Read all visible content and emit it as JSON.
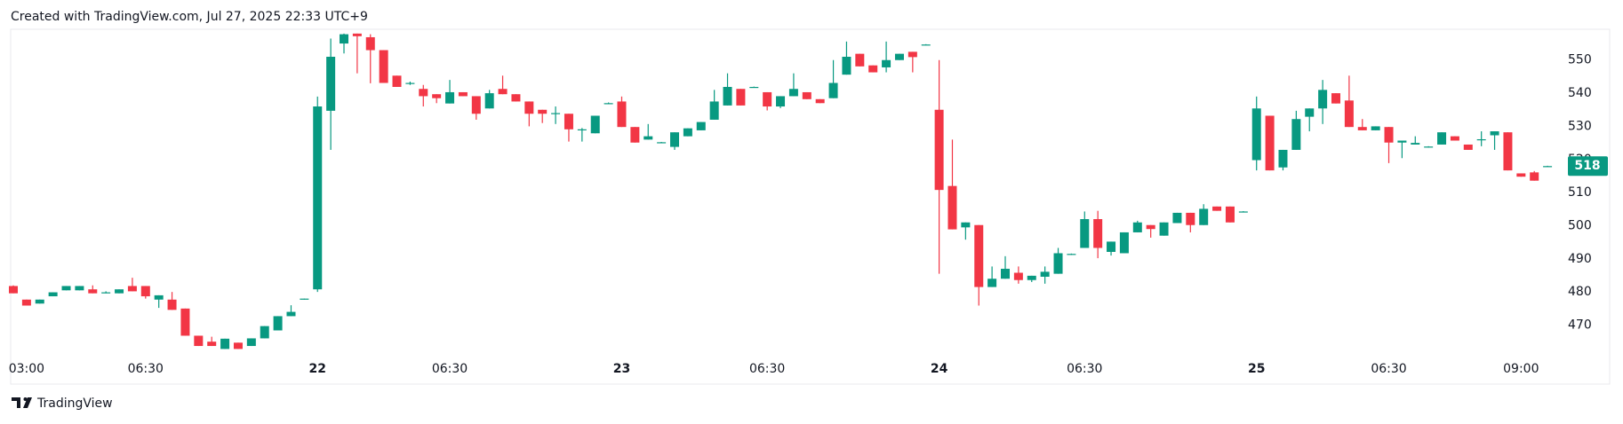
{
  "header": "Created with TradingView.com, Jul 27, 2025 22:33 UTC+9",
  "footer": "TradingView",
  "chart_data": {
    "type": "candlestick",
    "up_color": "#089981",
    "down_color": "#f23645",
    "last_price": 518,
    "ylim": [
      452.2,
      559.3
    ],
    "yticks": [
      470,
      480,
      490,
      500,
      510,
      520,
      530,
      540,
      550
    ],
    "categories": [
      null,
      "03:00",
      null,
      null,
      null,
      null,
      null,
      null,
      null,
      null,
      "06:30",
      null,
      null,
      null,
      null,
      null,
      null,
      null,
      null,
      null,
      null,
      null,
      null,
      "22",
      null,
      null,
      null,
      null,
      null,
      null,
      null,
      null,
      null,
      "06:30",
      null,
      null,
      null,
      null,
      null,
      null,
      null,
      null,
      null,
      null,
      null,
      null,
      "23",
      null,
      null,
      null,
      null,
      null,
      null,
      null,
      null,
      null,
      null,
      "06:30",
      null,
      null,
      null,
      null,
      null,
      null,
      null,
      null,
      null,
      null,
      null,
      null,
      "24",
      null,
      null,
      null,
      null,
      null,
      null,
      null,
      null,
      null,
      null,
      "06:30",
      null,
      null,
      null,
      null,
      null,
      null,
      null,
      null,
      null,
      null,
      null,
      null,
      "25",
      null,
      null,
      null,
      null,
      null,
      null,
      null,
      null,
      null,
      "06:30",
      null,
      null,
      null,
      null,
      null,
      null,
      null,
      null,
      null,
      "09:00",
      null,
      null
    ],
    "open": [
      481.8,
      477.7,
      476.5,
      478.7,
      480.5,
      480.5,
      480.8,
      479.9,
      479.6,
      481.8,
      481.8,
      477.7,
      477.7,
      475,
      466.8,
      465,
      462.8,
      464.7,
      463.7,
      466,
      468.4,
      472.7,
      477.7,
      480.8,
      534.7,
      555,
      558,
      556.9,
      553,
      545.3,
      543,
      541.3,
      539.7,
      536.9,
      540.3,
      539.1,
      535.4,
      541.3,
      539.7,
      537.5,
      535,
      533.8,
      533.8,
      528.8,
      527.9,
      536.9,
      537.5,
      529.8,
      526,
      525.1,
      523.8,
      527,
      528.8,
      532,
      536.3,
      541.3,
      541.9,
      540.3,
      536,
      539.1,
      540.3,
      538.2,
      538.5,
      545.6,
      551.9,
      548.4,
      547.8,
      550,
      552.5,
      554.7,
      535,
      512,
      499.5,
      500.2,
      481.5,
      484,
      485.8,
      483.6,
      484.6,
      485.5,
      491.4,
      493.3,
      502,
      492.1,
      491.7,
      498,
      500.2,
      497,
      500.8,
      503.9,
      500.2,
      505.8,
      505.8,
      504.2,
      519.8,
      533.2,
      517.6,
      522.9,
      532.9,
      535.4,
      540,
      537.8,
      529.8,
      528.8,
      529.8,
      525.1,
      524.5,
      523.8,
      524.5,
      527,
      524.5,
      526,
      527.3,
      528.2,
      515.8,
      516.1,
      518
    ],
    "high": [
      482,
      477.7,
      477.7,
      479.9,
      481.8,
      481.8,
      482,
      480.2,
      480.8,
      484.3,
      481.8,
      479,
      480,
      475,
      466.8,
      466.5,
      465.9,
      464.7,
      466,
      469.7,
      472.7,
      476,
      478,
      539,
      556.5,
      558,
      558,
      557.8,
      553,
      545.3,
      543.5,
      542.5,
      539.7,
      544,
      540.3,
      539.1,
      541,
      545.3,
      539.7,
      537.5,
      535,
      536,
      533.8,
      529.5,
      533.2,
      537.2,
      539,
      529.8,
      530.7,
      525.3,
      528.2,
      529.4,
      531.3,
      541,
      546,
      541.3,
      542,
      540.3,
      539.1,
      546,
      540.3,
      538.2,
      550,
      555.6,
      551.9,
      548.4,
      555.6,
      551.9,
      552.5,
      554.8,
      550,
      526,
      501,
      500.2,
      487.7,
      490.8,
      487.7,
      484.9,
      487.7,
      493.3,
      491.6,
      504.3,
      504.5,
      495.2,
      498,
      501.5,
      500.2,
      501,
      503.9,
      503.9,
      506.5,
      505.8,
      505.8,
      504.4,
      539,
      533.2,
      522.9,
      534.7,
      535.4,
      544,
      540,
      545.3,
      532.2,
      530,
      529.8,
      525.7,
      527,
      524,
      528.2,
      527,
      524.5,
      528.5,
      528.5,
      528.2,
      515.8,
      516.5,
      518.1
    ],
    "low": [
      479.6,
      475.9,
      476.5,
      478.7,
      480.5,
      480.5,
      479.6,
      479.6,
      479.6,
      480.2,
      478,
      475.2,
      474.6,
      466.8,
      463.7,
      463.7,
      462.8,
      462.8,
      463.7,
      466,
      468.4,
      472.7,
      477.7,
      480,
      522.9,
      552,
      546,
      543,
      543.1,
      541.9,
      542.5,
      536,
      537,
      536.9,
      539.1,
      532,
      535.4,
      539.7,
      537.5,
      530,
      531,
      530.7,
      525.4,
      525.4,
      527.9,
      536.8,
      529.8,
      525.1,
      526,
      525,
      522.9,
      527,
      528.8,
      532,
      536.3,
      536.3,
      541.8,
      534.8,
      535.5,
      539.1,
      538.2,
      537,
      538.5,
      545.6,
      548.1,
      546.3,
      546.3,
      550,
      546.3,
      554.6,
      485.5,
      498.9,
      495.8,
      475.9,
      481.5,
      484,
      482.5,
      483,
      482.5,
      485.5,
      491.2,
      493.3,
      490.2,
      491,
      491.7,
      498,
      496.4,
      497,
      500.8,
      498,
      500.2,
      504.5,
      501,
      504,
      516.7,
      516.7,
      516.7,
      522.9,
      528.5,
      530.7,
      536.9,
      529.8,
      528.8,
      528.8,
      518.9,
      520.4,
      524.5,
      523.6,
      524.5,
      525.7,
      522.9,
      524,
      522.9,
      516.7,
      514.8,
      513.6,
      517.9
    ],
    "close": [
      479.6,
      475.9,
      477.7,
      479.9,
      481.8,
      481.8,
      479.6,
      479.9,
      480.8,
      480.2,
      478.7,
      479,
      474.6,
      466.8,
      463.7,
      463.7,
      465.9,
      462.8,
      466,
      469.7,
      472.7,
      474,
      478,
      536,
      551,
      557.8,
      557.2,
      553,
      543.1,
      541.9,
      543.1,
      539.1,
      538.5,
      540.3,
      539.1,
      533.8,
      540,
      539.7,
      537.5,
      533.8,
      533.8,
      534,
      529.1,
      529.1,
      533.2,
      537,
      529.8,
      525.1,
      527,
      525.2,
      528.2,
      529.4,
      531.3,
      537.5,
      541.9,
      536.3,
      541.9,
      536,
      539.1,
      541.3,
      538.2,
      537,
      543.1,
      551,
      548.1,
      546.3,
      550,
      551.9,
      550.9,
      554.7,
      510.8,
      498.9,
      501,
      481.5,
      484,
      487,
      483.6,
      484.9,
      486.1,
      491.7,
      491.5,
      502,
      493.3,
      495.2,
      498,
      501,
      499,
      501,
      503.9,
      500.2,
      505.1,
      504.5,
      501,
      504.3,
      535.4,
      516.7,
      522.9,
      532.2,
      535.4,
      541,
      536.9,
      529.8,
      528.8,
      530,
      525.1,
      525.7,
      525,
      523.9,
      528.2,
      525.7,
      522.9,
      526.1,
      528.5,
      516.7,
      514.8,
      513.6,
      518
    ]
  }
}
